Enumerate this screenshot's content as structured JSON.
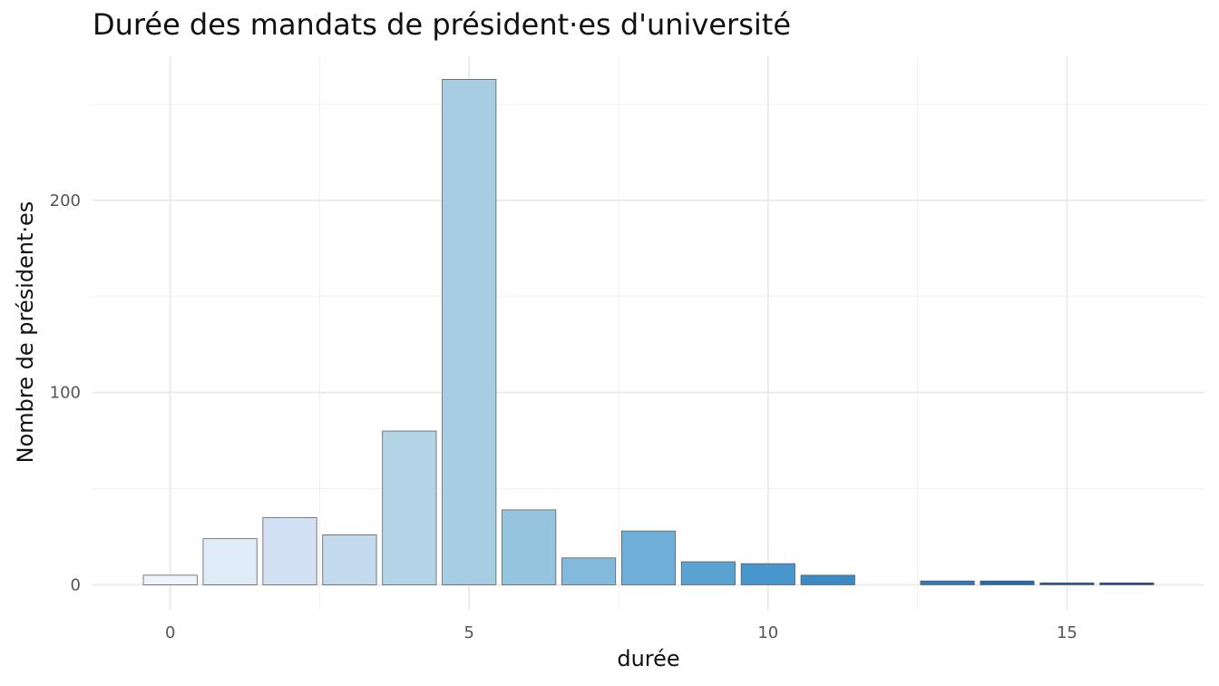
{
  "chart_data": {
    "type": "bar",
    "title": "Durée des mandats de président·es d'université",
    "xlabel": "durée",
    "ylabel": "Nombre de président·es",
    "x": [
      0,
      1,
      2,
      3,
      4,
      5,
      6,
      7,
      8,
      9,
      10,
      11,
      13,
      14,
      15,
      16
    ],
    "values": [
      5,
      24,
      35,
      26,
      80,
      263,
      39,
      14,
      28,
      12,
      11,
      5,
      2,
      2,
      1,
      1
    ],
    "colors": [
      "#eef4fb",
      "#e0ebf8",
      "#d2e2f4",
      "#c3d9ee",
      "#b4d4e8",
      "#a6cde2",
      "#95c4df",
      "#82b9dc",
      "#6eaed8",
      "#5aa2d2",
      "#4896cb",
      "#3b8ac4",
      "#2f7abc",
      "#2569ad",
      "#1c579d",
      "#164a8c"
    ],
    "xticks": [
      0,
      5,
      10,
      15
    ],
    "yticks": [
      0,
      100,
      200
    ],
    "xlim": [
      -1.3,
      17.3
    ],
    "ylim": [
      -13,
      275
    ],
    "grid": true,
    "legend": "none"
  }
}
